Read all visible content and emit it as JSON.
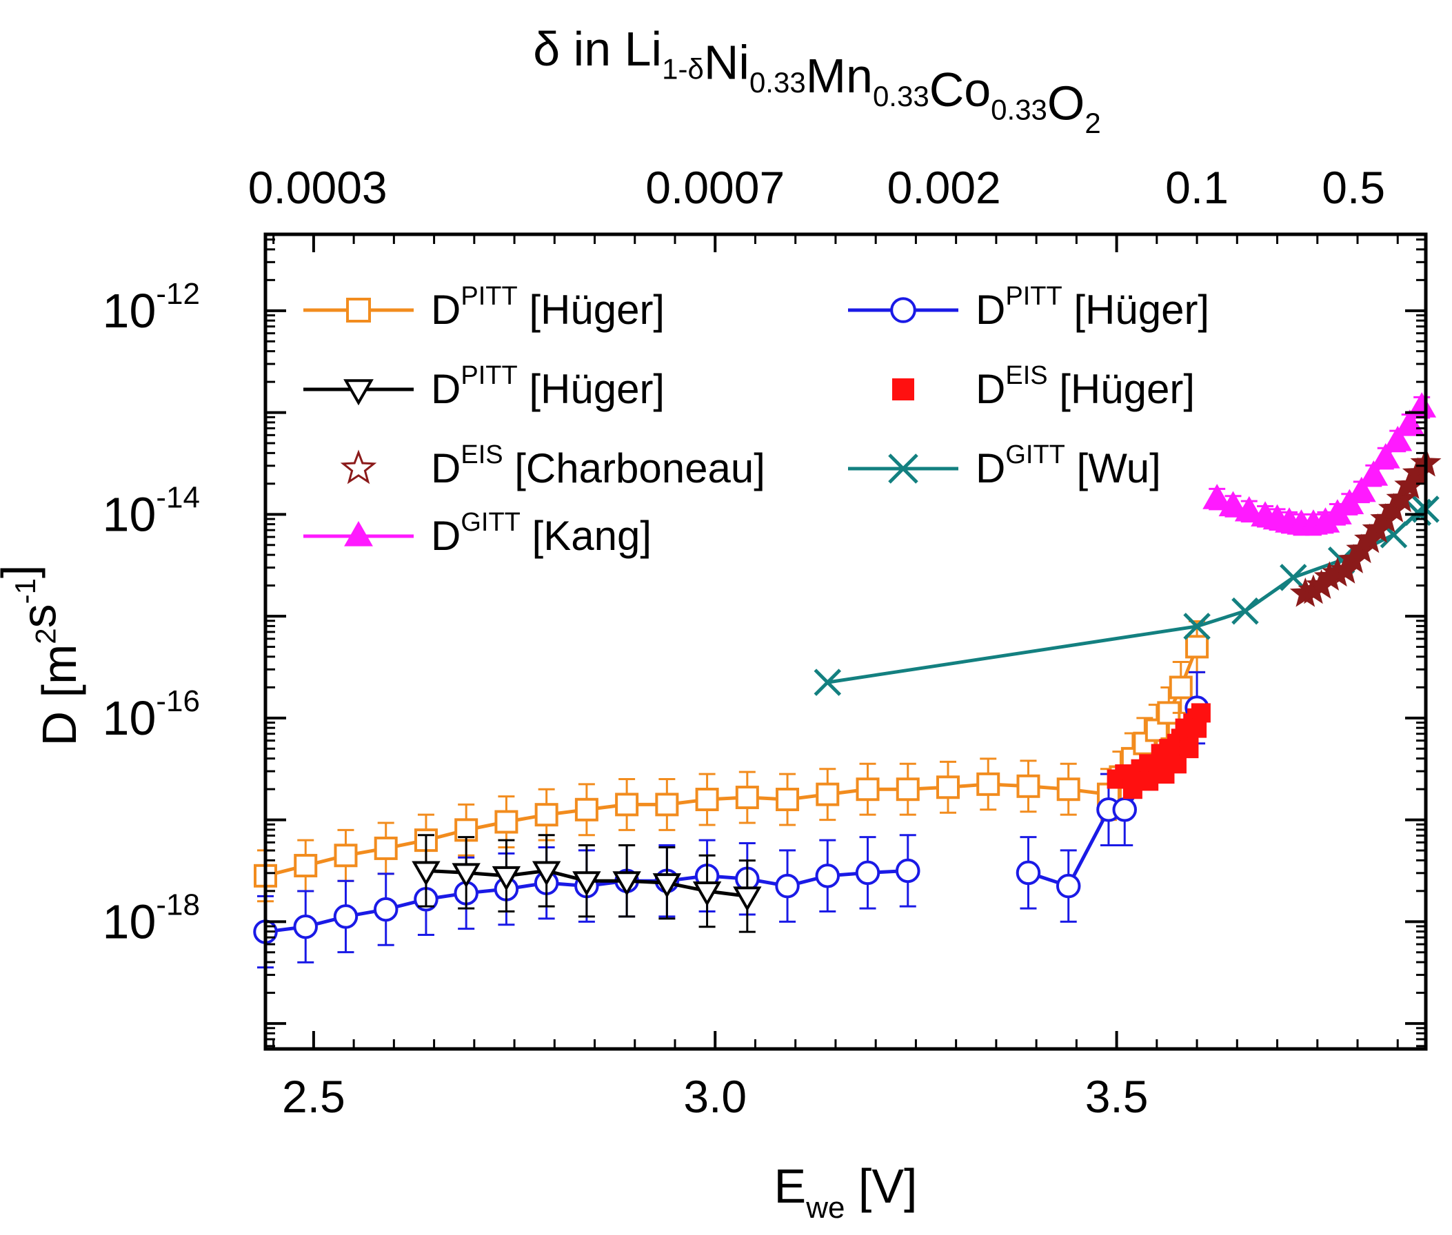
{
  "chart_data": {
    "type": "scatter",
    "title": "δ in Li1-δNi0.33Mn0.33Co0.33O2",
    "top_axis": {
      "title_parts": [
        {
          "t": "δ in Li",
          "s": 0
        },
        {
          "t": "1-δ",
          "s": -1
        },
        {
          "t": "Ni",
          "s": 0
        },
        {
          "t": "0.33",
          "s": -1
        },
        {
          "t": "Mn",
          "s": 0
        },
        {
          "t": "0.33",
          "s": -1
        },
        {
          "t": "Co",
          "s": 0
        },
        {
          "t": "0.33",
          "s": -1
        },
        {
          "t": "O",
          "s": 0
        },
        {
          "t": "2",
          "s": -1
        }
      ],
      "ticks": [
        {
          "label": "0.0003",
          "at": 2.505
        },
        {
          "label": "0.0007",
          "at": 3.0
        },
        {
          "label": "0.002",
          "at": 3.285
        },
        {
          "label": "0.1",
          "at": 3.6
        },
        {
          "label": "0.5",
          "at": 3.795
        }
      ]
    },
    "xaxis": {
      "label_main": "E",
      "label_sub": "we",
      "label_tail": " [V]",
      "xlim": [
        2.44,
        3.885
      ],
      "ticks": [
        2.5,
        3.0,
        3.5
      ],
      "tick_labels": [
        "2.5",
        "3.0",
        "3.5"
      ]
    },
    "yaxis": {
      "label_parts": [
        {
          "t": "D [m",
          "s": 0
        },
        {
          "t": "2",
          "s": 1
        },
        {
          "t": "s",
          "s": 0
        },
        {
          "t": "-1",
          "s": 1
        },
        {
          "t": "]",
          "s": 0
        }
      ],
      "scale": "log",
      "ylim_exp": [
        -19.25,
        -11.25
      ],
      "ticks": [
        {
          "exp": -12,
          "base": "10",
          "sup": "-12"
        },
        {
          "exp": -14,
          "base": "10",
          "sup": "-14"
        },
        {
          "exp": -16,
          "base": "10",
          "sup": "-16"
        },
        {
          "exp": -18,
          "base": "10",
          "sup": "-18"
        }
      ]
    },
    "series": [
      {
        "name": "DPITT [Hüger] orange",
        "legend_base": "D",
        "legend_sup": "PITT",
        "legend_tail": " [Hüger]",
        "color": "#f28c1e",
        "marker": "square",
        "line": true,
        "errorbars": true,
        "x": [
          2.44,
          2.49,
          2.54,
          2.59,
          2.64,
          2.69,
          2.74,
          2.79,
          2.84,
          2.89,
          2.94,
          2.99,
          3.04,
          3.09,
          3.14,
          3.19,
          3.24,
          3.29,
          3.34,
          3.39,
          3.44,
          3.49,
          3.505,
          3.52,
          3.535,
          3.55,
          3.565,
          3.58,
          3.6
        ],
        "y_exp": [
          -17.55,
          -17.45,
          -17.35,
          -17.28,
          -17.2,
          -17.1,
          -17.02,
          -16.95,
          -16.9,
          -16.85,
          -16.85,
          -16.8,
          -16.78,
          -16.8,
          -16.75,
          -16.7,
          -16.7,
          -16.68,
          -16.65,
          -16.67,
          -16.7,
          -16.75,
          -16.58,
          -16.4,
          -16.25,
          -16.12,
          -15.95,
          -15.7,
          -15.3
        ],
        "err": 0.25
      },
      {
        "name": "DPITT [Hüger] blue",
        "legend_base": "D",
        "legend_sup": "PITT",
        "legend_tail": " [Hüger]",
        "color": "#1a1ae6",
        "marker": "circle",
        "line": true,
        "errorbars": true,
        "segments": [
          {
            "x": [
              2.44,
              2.49,
              2.54,
              2.59,
              2.64,
              2.69,
              2.74,
              2.79,
              2.84,
              2.89,
              2.94,
              2.99,
              3.04,
              3.09,
              3.14,
              3.19,
              3.24
            ],
            "y_exp": [
              -18.1,
              -18.05,
              -17.95,
              -17.88,
              -17.78,
              -17.72,
              -17.68,
              -17.62,
              -17.65,
              -17.6,
              -17.6,
              -17.55,
              -17.58,
              -17.65,
              -17.55,
              -17.52,
              -17.5
            ]
          },
          {
            "x": [
              3.39,
              3.44,
              3.49,
              3.51,
              3.6
            ],
            "y_exp": [
              -17.52,
              -17.65,
              -16.9,
              -16.9,
              -15.9
            ]
          }
        ],
        "err": 0.35
      },
      {
        "name": "DPITT [Hüger] black",
        "legend_base": "D",
        "legend_sup": "PITT",
        "legend_tail": " [Hüger]",
        "color": "#000000",
        "marker": "triangle-down",
        "line": true,
        "errorbars": true,
        "x": [
          2.64,
          2.69,
          2.74,
          2.79,
          2.84,
          2.89,
          2.94,
          2.99,
          3.04
        ],
        "y_exp": [
          -17.5,
          -17.52,
          -17.55,
          -17.5,
          -17.6,
          -17.6,
          -17.62,
          -17.7,
          -17.75
        ],
        "err": 0.35
      },
      {
        "name": "DEIS [Hüger]",
        "legend_base": "D",
        "legend_sup": "EIS",
        "legend_tail": " [Hüger]",
        "color": "#ff1010",
        "marker": "filled-square",
        "line": false,
        "errorbars": false,
        "x": [
          3.5,
          3.51,
          3.52,
          3.53,
          3.54,
          3.55,
          3.555,
          3.56,
          3.565,
          3.57,
          3.575,
          3.58,
          3.585,
          3.59,
          3.595,
          3.6,
          3.605,
          3.52,
          3.54,
          3.56,
          3.575,
          3.59,
          3.6
        ],
        "y_exp": [
          -16.6,
          -16.55,
          -16.6,
          -16.5,
          -16.45,
          -16.5,
          -16.35,
          -16.4,
          -16.3,
          -16.4,
          -16.25,
          -16.2,
          -16.1,
          -16.15,
          -16.05,
          -16.0,
          -15.95,
          -16.7,
          -16.62,
          -16.55,
          -16.45,
          -16.3,
          -16.1
        ]
      },
      {
        "name": "DEIS [Charboneau]",
        "legend_base": "D",
        "legend_sup": "EIS",
        "legend_tail": " [Charboneau]",
        "color": "#8b1a1a",
        "marker": "star",
        "line": false,
        "errorbars": false,
        "x": [
          3.735,
          3.745,
          3.755,
          3.765,
          3.775,
          3.785,
          3.795,
          3.805,
          3.815,
          3.825,
          3.835,
          3.845,
          3.855,
          3.865,
          3.875,
          3.885
        ],
        "y_exp": [
          -14.78,
          -14.75,
          -14.7,
          -14.62,
          -14.58,
          -14.55,
          -14.45,
          -14.35,
          -14.25,
          -14.15,
          -14.05,
          -13.95,
          -13.85,
          -13.72,
          -13.6,
          -13.5
        ]
      },
      {
        "name": "DGITT [Wu]",
        "legend_base": "D",
        "legend_sup": "GITT",
        "legend_tail": " [Wu]",
        "color": "#138080",
        "marker": "x",
        "line": true,
        "errorbars": false,
        "x": [
          3.14,
          3.6,
          3.66,
          3.72,
          3.78,
          3.845,
          3.875,
          3.885
        ],
        "y_exp": [
          -15.65,
          -15.1,
          -14.95,
          -14.62,
          -14.45,
          -14.2,
          -13.98,
          -13.95
        ]
      },
      {
        "name": "DGITT [Kang]",
        "legend_base": "D",
        "legend_sup": "GITT",
        "legend_tail": " [Kang]",
        "color": "#ff1aff",
        "marker": "filled-triangle-up",
        "line": true,
        "errorbars": true,
        "x": [
          3.625,
          3.645,
          3.665,
          3.685,
          3.7,
          3.715,
          3.73,
          3.745,
          3.76,
          3.775,
          3.79,
          3.805,
          3.82,
          3.835,
          3.85,
          3.865,
          3.88
        ],
        "y_exp": [
          -13.85,
          -13.92,
          -13.97,
          -14.02,
          -14.05,
          -14.08,
          -14.1,
          -14.1,
          -14.08,
          -14.0,
          -13.9,
          -13.78,
          -13.62,
          -13.45,
          -13.28,
          -13.12,
          -12.95
        ],
        "err": 0.1
      }
    ],
    "legend": {
      "placement": "top-left, two columns",
      "order": [
        0,
        1,
        2,
        3,
        4,
        5,
        6
      ]
    }
  }
}
